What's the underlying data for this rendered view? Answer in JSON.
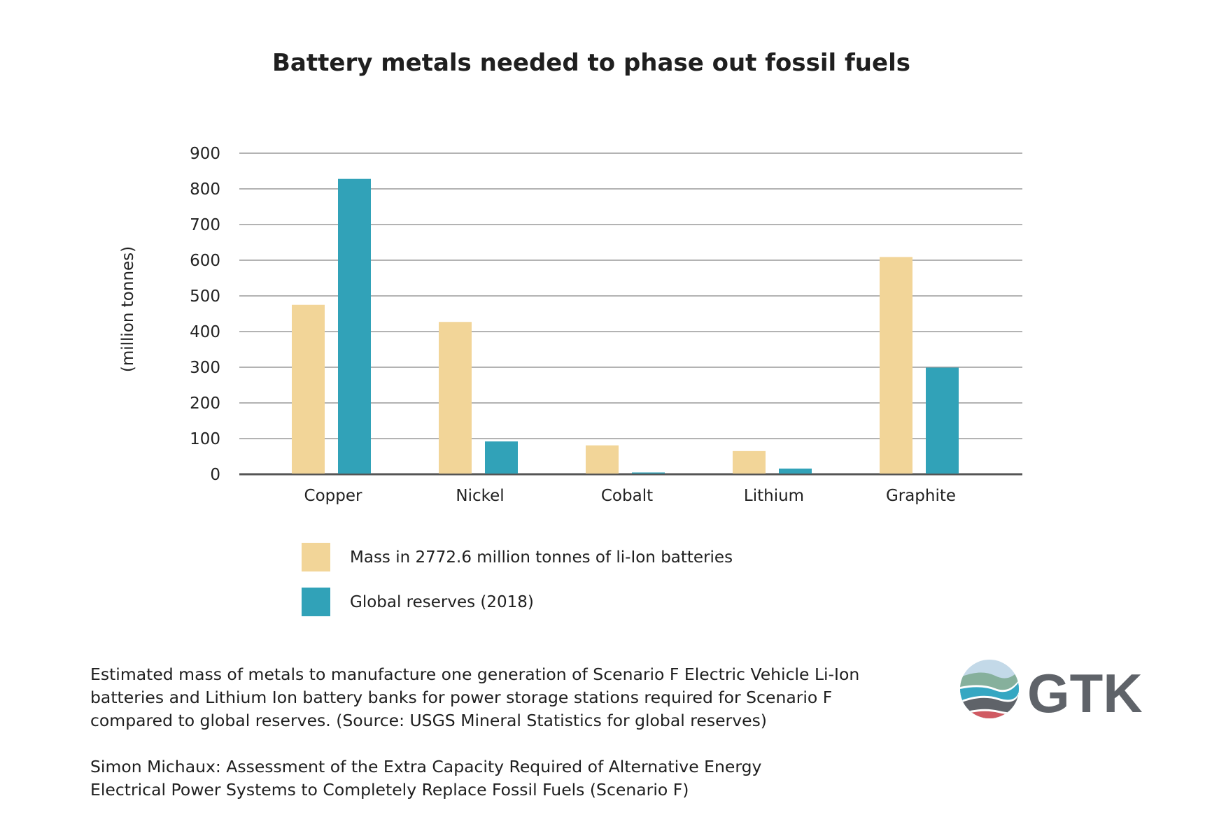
{
  "title": "Battery metals needed to phase out fossil fuels",
  "chart_data": {
    "type": "bar",
    "title": "Battery metals needed to phase out fossil fuels",
    "xlabel": "",
    "ylabel": "(million tonnes)",
    "ylim": [
      0,
      900
    ],
    "yticks": [
      0,
      100,
      200,
      300,
      400,
      500,
      600,
      700,
      800,
      900
    ],
    "grid": true,
    "categories": [
      "Copper",
      "Nickel",
      "Cobalt",
      "Lithium",
      "Graphite"
    ],
    "series": [
      {
        "name": "Mass in 2772.6 million tonnes of li-Ion batteries",
        "color": "#f2d598",
        "values": [
          475,
          427,
          81,
          65,
          609
        ]
      },
      {
        "name": "Global reserves (2018)",
        "color": "#31a2b8",
        "values": [
          828,
          92,
          5,
          16,
          299
        ]
      }
    ],
    "legend_position": "bottom-left"
  },
  "caption": [
    "Estimated mass of metals to manufacture one generation of Scenario F Electric Vehicle Li-Ion",
    "batteries and Lithium Ion battery banks for power storage stations required for Scenario F",
    "compared to global reserves. (Source: USGS Mineral Statistics for global reserves)"
  ],
  "citation": [
    "Simon Michaux: Assessment of the Extra Capacity Required of Alternative Energy",
    "Electrical Power Systems to Completely Replace Fossil Fuels (Scenario F)"
  ],
  "logo": {
    "text": "GTK"
  }
}
